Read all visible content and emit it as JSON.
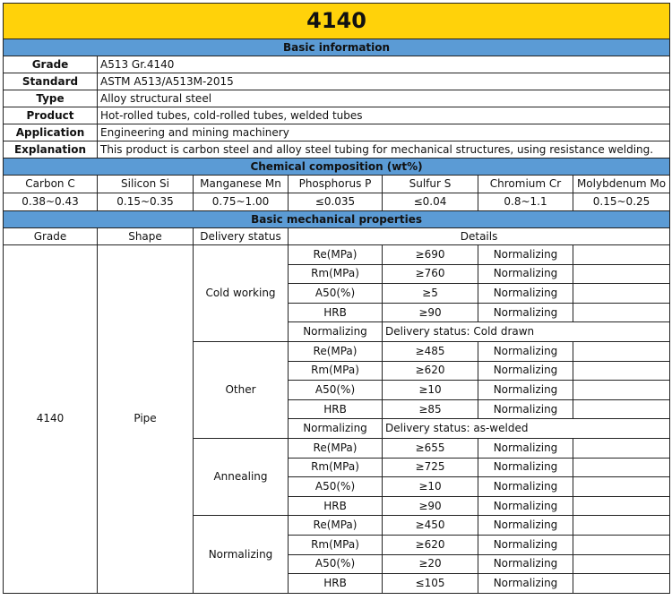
{
  "title": "4140",
  "colors": {
    "title_bg": "#ffd20a",
    "section_bg": "#5b9bd5"
  },
  "basic": {
    "header": "Basic information",
    "rows": [
      {
        "label": "Grade",
        "value": "A513 Gr.4140"
      },
      {
        "label": "Standard",
        "value": "ASTM A513/A513M-2015"
      },
      {
        "label": "Type",
        "value": "Alloy structural steel"
      },
      {
        "label": "Product",
        "value": "Hot-rolled tubes, cold-rolled tubes, welded tubes"
      },
      {
        "label": "Application",
        "value": "Engineering and mining machinery"
      },
      {
        "label": "Explanation",
        "value": "This product is carbon steel and alloy steel tubing for mechanical structures, using resistance welding."
      }
    ]
  },
  "chem": {
    "header": "Chemical composition (wt%)",
    "names": [
      "Carbon C",
      "Silicon Si",
      "Manganese Mn",
      "Phosphorus P",
      "Sulfur S",
      "Chromium Cr",
      "Molybdenum Mo"
    ],
    "values": [
      "0.38~0.43",
      "0.15~0.35",
      "0.75~1.00",
      "≤0.035",
      "≤0.04",
      "0.8~1.1",
      "0.15~0.25"
    ]
  },
  "mech": {
    "header": "Basic mechanical properties",
    "columns": [
      "Grade",
      "Shape",
      "Delivery status",
      "Details"
    ],
    "grade": "4140",
    "shape": "Pipe",
    "groups": [
      {
        "status": "Cold working",
        "rows": [
          [
            "Re(MPa)",
            "≥690",
            "Normalizing"
          ],
          [
            "Rm(MPa)",
            "≥760",
            "Normalizing"
          ],
          [
            "A50(%)",
            "≥5",
            "Normalizing"
          ],
          [
            "HRB",
            "≥90",
            "Normalizing"
          ]
        ],
        "note": [
          "Normalizing",
          "Delivery status: Cold drawn"
        ]
      },
      {
        "status": "Other",
        "rows": [
          [
            "Re(MPa)",
            "≥485",
            "Normalizing"
          ],
          [
            "Rm(MPa)",
            "≥620",
            "Normalizing"
          ],
          [
            "A50(%)",
            "≥10",
            "Normalizing"
          ],
          [
            "HRB",
            "≥85",
            "Normalizing"
          ]
        ],
        "note": [
          "Normalizing",
          "Delivery status: as-welded"
        ]
      },
      {
        "status": "Annealing",
        "rows": [
          [
            "Re(MPa)",
            "≥655",
            "Normalizing"
          ],
          [
            "Rm(MPa)",
            "≥725",
            "Normalizing"
          ],
          [
            "A50(%)",
            "≥10",
            "Normalizing"
          ],
          [
            "HRB",
            "≥90",
            "Normalizing"
          ]
        ]
      },
      {
        "status": "Normalizing",
        "rows": [
          [
            "Re(MPa)",
            "≥450",
            "Normalizing"
          ],
          [
            "Rm(MPa)",
            "≥620",
            "Normalizing"
          ],
          [
            "A50(%)",
            "≥20",
            "Normalizing"
          ],
          [
            "HRB",
            "≤105",
            "Normalizing"
          ]
        ]
      }
    ]
  }
}
